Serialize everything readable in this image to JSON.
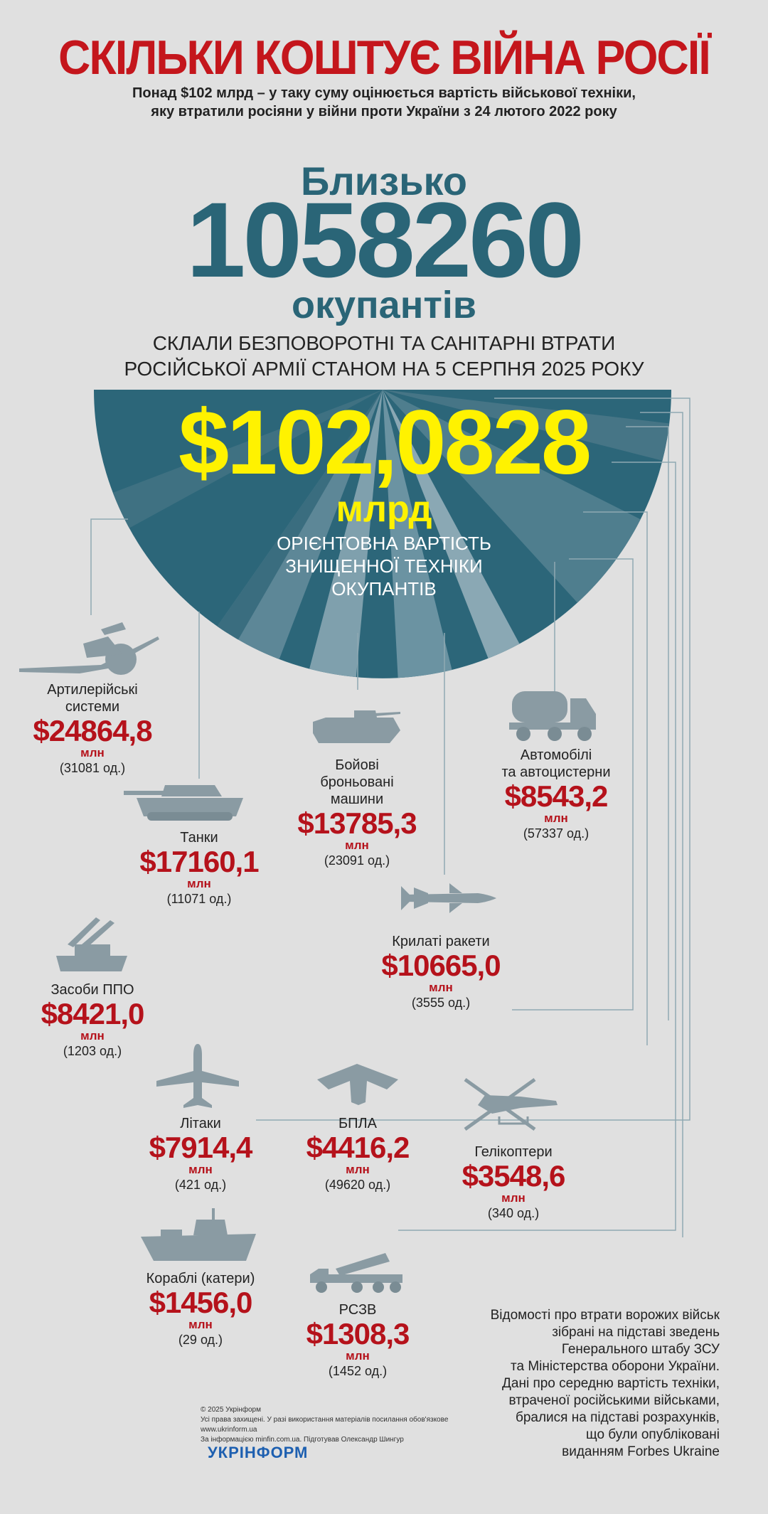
{
  "header": {
    "title": "СКІЛЬКИ КОШТУЄ ВІЙНА РОСІЇ",
    "subtitle_line1": "Понад $102 млрд – у таку суму оцінюється вартість військової техніки,",
    "subtitle_line2": "яку втратили росіяни у війни проти України з 24 лютого 2022 року"
  },
  "personnel": {
    "prefix": "Близько",
    "number": "1058260",
    "suffix": "окупантів",
    "desc_line1": "СКЛАЛИ БЕЗПОВОРОТНІ ТА САНІТАРНІ ВТРАТИ",
    "desc_line2": "РОСІЙСЬКОЇ АРМІЇ СТАНОМ НА 5 СЕРПНЯ 2025 РОКУ"
  },
  "total": {
    "amount": "$102,0828",
    "unit": "млрд",
    "desc_line1": "ОРІЄНТОВНА ВАРТІСТЬ",
    "desc_line2": "ЗНИЩЕННОЇ ТЕХНІКИ",
    "desc_line3": "ОКУПАНТІВ"
  },
  "colors": {
    "title_red": "#c4161c",
    "teal": "#2a6577",
    "yellow": "#fff200",
    "value_red": "#b5121b",
    "icon_grey": "#8a9ba3"
  },
  "items": [
    {
      "label1": "Артилерійські",
      "label2": "системи",
      "value": "$24864,8",
      "unit": "млн",
      "count": "(31081 од.)",
      "icon": "artillery-icon"
    },
    {
      "label1": "Танки",
      "label2": "",
      "value": "$17160,1",
      "unit": "млн",
      "count": "(11071 од.)",
      "icon": "tank-icon"
    },
    {
      "label1": "Бойові",
      "label2": "броньовані",
      "label3": "машини",
      "value": "$13785,3",
      "unit": "млн",
      "count": "(23091 од.)",
      "icon": "apc-icon"
    },
    {
      "label1": "Автомобілі",
      "label2": "та автоцистерни",
      "value": "$8543,2",
      "unit": "млн",
      "count": "(57337 од.)",
      "icon": "truck-icon"
    },
    {
      "label1": "Засоби ППО",
      "label2": "",
      "value": "$8421,0",
      "unit": "млн",
      "count": "(1203 од.)",
      "icon": "air-defense-icon"
    },
    {
      "label1": "Крилаті ракети",
      "label2": "",
      "value": "$10665,0",
      "unit": "млн",
      "count": "(3555 од.)",
      "icon": "missile-icon"
    },
    {
      "label1": "Літаки",
      "label2": "",
      "value": "$7914,4",
      "unit": "млн",
      "count": "(421 од.)",
      "icon": "plane-icon"
    },
    {
      "label1": "БПЛА",
      "label2": "",
      "value": "$4416,2",
      "unit": "млн",
      "count": "(49620 од.)",
      "icon": "drone-icon"
    },
    {
      "label1": "Гелікоптери",
      "label2": "",
      "value": "$3548,6",
      "unit": "млн",
      "count": "(340 од.)",
      "icon": "helicopter-icon"
    },
    {
      "label1": "Кораблі (катери)",
      "label2": "",
      "value": "$1456,0",
      "unit": "млн",
      "count": "(29 од.)",
      "icon": "ship-icon"
    },
    {
      "label1": "РСЗВ",
      "label2": "",
      "value": "$1308,3",
      "unit": "млн",
      "count": "(1452 од.)",
      "icon": "mlrs-icon"
    }
  ],
  "note": {
    "line1": "Відомості про втрати ворожих військ",
    "line2": "зібрані на підставі зведень",
    "line3": "Генерального штабу ЗСУ",
    "line4": "та Міністерства оборони України.",
    "line5": "Дані про середню вартість техніки,",
    "line6": "втраченої російськими військами,",
    "line7": "бралися на підставі розрахунків,",
    "line8": "що були опубліковані",
    "line9": "виданням Forbes Ukraine"
  },
  "footer": {
    "copyright": "© 2025 Укрінформ",
    "rights": "Усі права захищені. У разі використання матеріалів посилання обов'язкове",
    "site": "www.ukrinform.ua",
    "credits": "За інформацією minfin.com.ua. Підготував Олександр Шингур",
    "brand": "УКРІНФОРМ"
  }
}
